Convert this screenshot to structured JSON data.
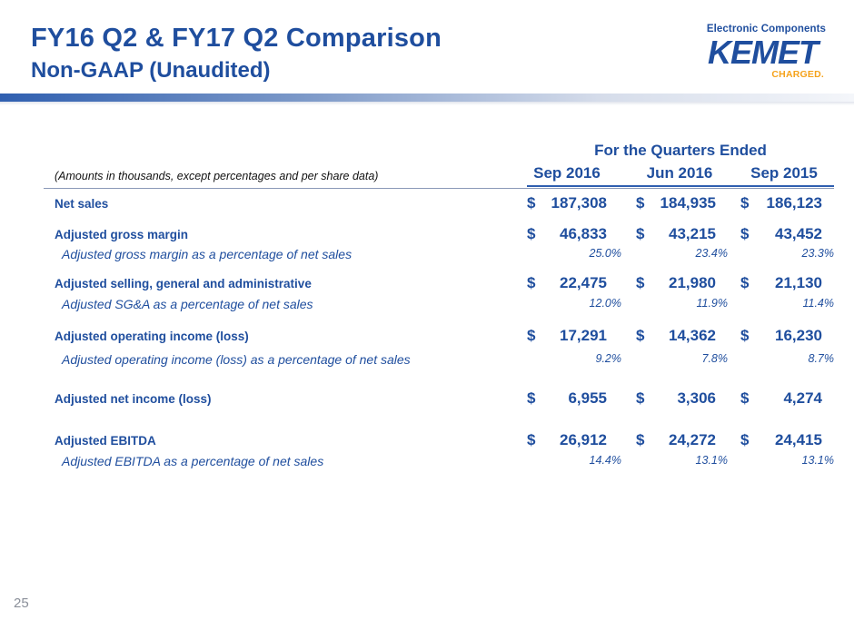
{
  "slide": {
    "title": "FY16 Q2 & FY17 Q2 Comparison",
    "subtitle": "Non-GAAP (Unaudited)",
    "page_number": "25"
  },
  "logo": {
    "top_text": "Electronic Components",
    "brand": "KEMET",
    "tagline": "CHARGED.",
    "colors": {
      "brand": "#1f4e9e",
      "tagline": "#f5a21b"
    }
  },
  "table": {
    "group_header": "For the Quarters Ended",
    "note": "(Amounts in thousands, except percentages and per share data)",
    "columns": [
      "Sep 2016",
      "Jun 2016",
      "Sep 2015"
    ],
    "currency": "$",
    "rows": [
      {
        "label": "Net sales",
        "values": [
          "187,308",
          "184,935",
          "186,123"
        ]
      },
      {
        "label": "Adjusted gross margin",
        "values": [
          "46,833",
          "43,215",
          "43,452"
        ]
      },
      {
        "label": "Adjusted gross margin as a percentage of net sales",
        "values": [
          "25.0%",
          "23.4%",
          "23.3%"
        ]
      },
      {
        "label": "Adjusted selling, general and administrative",
        "values": [
          "22,475",
          "21,980",
          "21,130"
        ]
      },
      {
        "label": "Adjusted SG&A as a percentage of net sales",
        "values": [
          "12.0%",
          "11.9%",
          "11.4%"
        ]
      },
      {
        "label": "Adjusted operating income (loss)",
        "values": [
          "17,291",
          "14,362",
          "16,230"
        ]
      },
      {
        "label": "Adjusted operating income (loss) as a percentage of net sales",
        "values": [
          "9.2%",
          "7.8%",
          "8.7%"
        ]
      },
      {
        "label": "Adjusted net income (loss)",
        "values": [
          "6,955",
          "3,306",
          "4,274"
        ]
      },
      {
        "label": "Adjusted EBITDA",
        "values": [
          "26,912",
          "24,272",
          "24,415"
        ]
      },
      {
        "label": "Adjusted EBITDA as a percentage of net sales",
        "values": [
          "14.4%",
          "13.1%",
          "13.1%"
        ]
      }
    ]
  }
}
